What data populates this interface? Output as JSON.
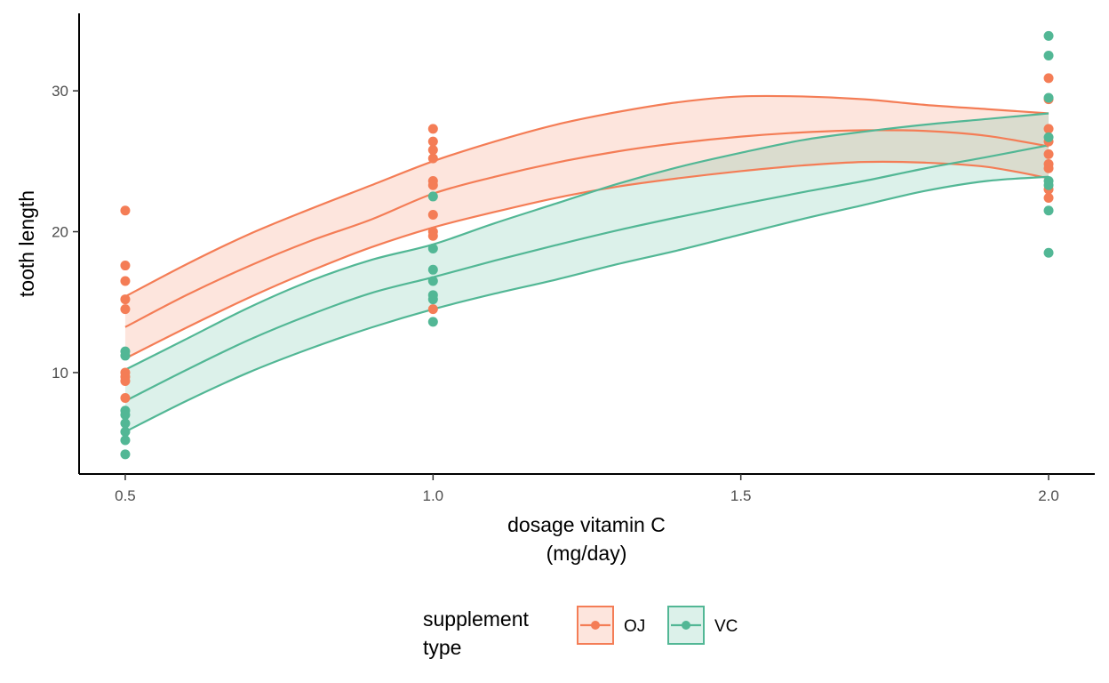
{
  "chart_data": {
    "type": "scatter",
    "xlabel_lines": [
      "dosage vitamin C",
      "(mg/day)"
    ],
    "ylabel": "tooth length",
    "xlim": [
      0.425,
      2.075
    ],
    "ylim": [
      2.8,
      35.5
    ],
    "xticks": [
      0.5,
      1.0,
      1.5,
      2.0
    ],
    "xtick_labels": [
      "0.5",
      "1.0",
      "1.5",
      "2.0"
    ],
    "yticks": [
      10,
      20,
      30
    ],
    "ytick_labels": [
      "10",
      "20",
      "30"
    ],
    "grid": false,
    "legend": {
      "position": "bottom",
      "title_lines": [
        "supplement",
        "type"
      ]
    },
    "series": [
      {
        "name": "OJ",
        "color": "#F47D56",
        "points": [
          {
            "x": 0.5,
            "y": 21.5
          },
          {
            "x": 0.5,
            "y": 17.6
          },
          {
            "x": 0.5,
            "y": 16.5
          },
          {
            "x": 0.5,
            "y": 15.2
          },
          {
            "x": 0.5,
            "y": 14.5
          },
          {
            "x": 0.5,
            "y": 10.0
          },
          {
            "x": 0.5,
            "y": 9.7
          },
          {
            "x": 0.5,
            "y": 9.4
          },
          {
            "x": 0.5,
            "y": 8.2
          },
          {
            "x": 1.0,
            "y": 27.3
          },
          {
            "x": 1.0,
            "y": 26.4
          },
          {
            "x": 1.0,
            "y": 25.8
          },
          {
            "x": 1.0,
            "y": 25.2
          },
          {
            "x": 1.0,
            "y": 23.6
          },
          {
            "x": 1.0,
            "y": 23.3
          },
          {
            "x": 1.0,
            "y": 21.2
          },
          {
            "x": 1.0,
            "y": 20.0
          },
          {
            "x": 1.0,
            "y": 19.7
          },
          {
            "x": 1.0,
            "y": 14.5
          },
          {
            "x": 2.0,
            "y": 30.9
          },
          {
            "x": 2.0,
            "y": 29.4
          },
          {
            "x": 2.0,
            "y": 27.3
          },
          {
            "x": 2.0,
            "y": 26.4
          },
          {
            "x": 2.0,
            "y": 25.5
          },
          {
            "x": 2.0,
            "y": 24.8
          },
          {
            "x": 2.0,
            "y": 24.5
          },
          {
            "x": 2.0,
            "y": 23.0
          },
          {
            "x": 2.0,
            "y": 22.4
          }
        ],
        "fit": {
          "x": [
            0.5,
            0.6,
            0.7,
            0.8,
            0.9,
            1.0,
            1.1,
            1.2,
            1.3,
            1.4,
            1.5,
            1.6,
            1.7,
            1.8,
            1.9,
            2.0
          ],
          "fit": [
            13.23,
            15.51,
            17.54,
            19.33,
            20.87,
            22.7,
            23.9,
            24.9,
            25.7,
            26.3,
            26.75,
            27.05,
            27.2,
            27.15,
            26.8,
            26.06
          ],
          "lower": [
            11.0,
            13.2,
            15.3,
            17.2,
            18.9,
            20.3,
            21.4,
            22.4,
            23.2,
            23.8,
            24.3,
            24.7,
            24.95,
            24.9,
            24.6,
            23.8
          ],
          "upper": [
            15.4,
            17.7,
            19.8,
            21.6,
            23.3,
            25.0,
            26.4,
            27.6,
            28.5,
            29.2,
            29.6,
            29.6,
            29.4,
            29.0,
            28.7,
            28.4
          ]
        }
      },
      {
        "name": "VC",
        "color": "#52B795",
        "points": [
          {
            "x": 0.5,
            "y": 11.5
          },
          {
            "x": 0.5,
            "y": 11.2
          },
          {
            "x": 0.5,
            "y": 7.3
          },
          {
            "x": 0.5,
            "y": 7.0
          },
          {
            "x": 0.5,
            "y": 6.4
          },
          {
            "x": 0.5,
            "y": 5.8
          },
          {
            "x": 0.5,
            "y": 5.2
          },
          {
            "x": 0.5,
            "y": 4.2
          },
          {
            "x": 1.0,
            "y": 22.5
          },
          {
            "x": 1.0,
            "y": 18.8
          },
          {
            "x": 1.0,
            "y": 17.3
          },
          {
            "x": 1.0,
            "y": 16.5
          },
          {
            "x": 1.0,
            "y": 15.5
          },
          {
            "x": 1.0,
            "y": 15.2
          },
          {
            "x": 1.0,
            "y": 13.6
          },
          {
            "x": 2.0,
            "y": 33.9
          },
          {
            "x": 2.0,
            "y": 32.5
          },
          {
            "x": 2.0,
            "y": 29.5
          },
          {
            "x": 2.0,
            "y": 26.7
          },
          {
            "x": 2.0,
            "y": 23.6
          },
          {
            "x": 2.0,
            "y": 23.3
          },
          {
            "x": 2.0,
            "y": 21.5
          },
          {
            "x": 2.0,
            "y": 18.5
          }
        ],
        "fit": {
          "x": [
            0.5,
            0.6,
            0.7,
            0.8,
            0.9,
            1.0,
            1.1,
            1.2,
            1.3,
            1.4,
            1.5,
            1.6,
            1.7,
            1.8,
            1.9,
            2.0
          ],
          "fit": [
            7.98,
            10.2,
            12.3,
            14.1,
            15.65,
            16.77,
            17.95,
            19.05,
            20.1,
            21.05,
            21.95,
            22.8,
            23.6,
            24.5,
            25.3,
            26.14
          ],
          "lower": [
            5.8,
            8.0,
            10.0,
            11.7,
            13.2,
            14.5,
            15.6,
            16.6,
            17.7,
            18.7,
            19.8,
            20.9,
            21.9,
            22.9,
            23.6,
            23.9
          ],
          "upper": [
            10.2,
            12.4,
            14.6,
            16.5,
            18.0,
            19.1,
            20.6,
            22.0,
            23.4,
            24.6,
            25.6,
            26.5,
            27.1,
            27.6,
            28.0,
            28.4
          ]
        }
      }
    ]
  }
}
